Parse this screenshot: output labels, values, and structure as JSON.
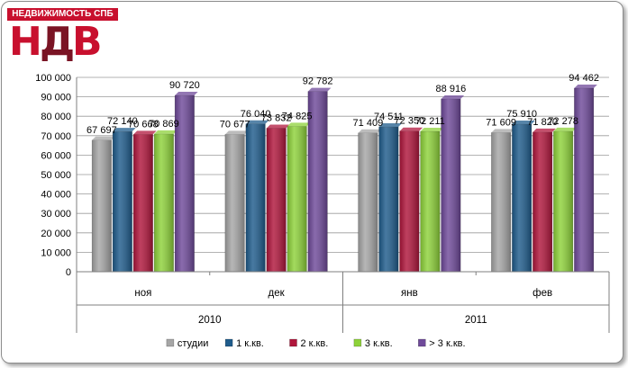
{
  "logo": {
    "banner": "НЕДВИЖИМОСТЬ СПБ",
    "letters": [
      "Н",
      "Д",
      "В"
    ]
  },
  "chart_data": {
    "type": "bar",
    "categories": [
      "ноя",
      "дек",
      "янв",
      "фев"
    ],
    "groups": [
      {
        "label": "2010",
        "categories": [
          "ноя",
          "дек"
        ]
      },
      {
        "label": "2011",
        "categories": [
          "янв",
          "фев"
        ]
      }
    ],
    "series": [
      {
        "name": "студии",
        "color": "#a6a6a6",
        "values": [
          67697,
          70677,
          71409,
          71609
        ],
        "labels": [
          "67 697",
          "70 677",
          "71 409",
          "71 609"
        ]
      },
      {
        "name": "1 к.кв.",
        "color": "#1f5c8c",
        "values": [
          72140,
          76040,
          74511,
          75910
        ],
        "labels": [
          "72 140",
          "76 040",
          "74 511",
          "75 910"
        ]
      },
      {
        "name": "2 к.кв.",
        "color": "#b0163c",
        "values": [
          70668,
          73832,
          72350,
          71820
        ],
        "labels": [
          "70 668",
          "73 832",
          "72 350",
          "71 820"
        ]
      },
      {
        "name": "3 к.кв.",
        "color": "#8ed23a",
        "values": [
          70869,
          74825,
          72211,
          72278
        ],
        "labels": [
          "70 869",
          "74 825",
          "72 211",
          "72 278"
        ]
      },
      {
        "name": "> 3 к.кв.",
        "color": "#6f4a9a",
        "values": [
          90720,
          92782,
          88916,
          94462
        ],
        "labels": [
          "90 720",
          "92 782",
          "88 916",
          "94 462"
        ]
      }
    ],
    "yticks": [
      "0",
      "10 000",
      "20 000",
      "30 000",
      "40 000",
      "50 000",
      "60 000",
      "70 000",
      "80 000",
      "90 000",
      "100 000"
    ],
    "ylim": [
      0,
      100000
    ],
    "grid": true,
    "legend_position": "bottom"
  }
}
